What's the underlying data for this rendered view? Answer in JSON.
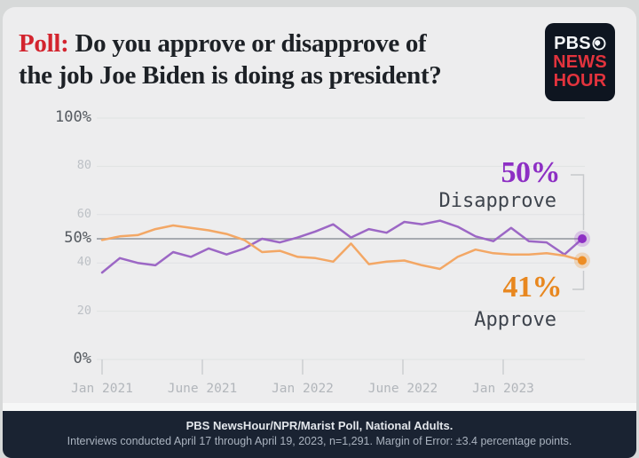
{
  "title": {
    "prefix": "Poll:",
    "line1": "Do you approve or disapprove of",
    "line2": "the job Joe Biden is doing as president?"
  },
  "logo": {
    "line1": "PBS",
    "line2": "NEWS",
    "line3": "HOUR"
  },
  "chart_data": {
    "type": "line",
    "title": "Do you approve or disapprove of the job Joe Biden is doing as president?",
    "x_axis": {
      "labels": [
        "Jan 2021",
        "June 2021",
        "Jan 2022",
        "June 2022",
        "Jan 2023"
      ],
      "range": "Jan 2021 - Apr 2023"
    },
    "ylim": [
      0,
      100
    ],
    "grid": true,
    "baseline_value": 50,
    "y_ticks": [
      {
        "label": "100%",
        "value": 100,
        "major": true
      },
      {
        "label": "80",
        "value": 80,
        "major": false
      },
      {
        "label": "60",
        "value": 60,
        "major": false
      },
      {
        "label": "50%",
        "value": 50,
        "major": true
      },
      {
        "label": "40",
        "value": 40,
        "major": false
      },
      {
        "label": "20",
        "value": 20,
        "major": false
      },
      {
        "label": "0%",
        "value": 0,
        "major": true
      }
    ],
    "series": [
      {
        "name": "Disapprove",
        "end_value_label": "50%",
        "line_color": "#9c67c5",
        "dot_color": "#8d2fc4",
        "halo_color": "rgba(141,47,196,0.22)",
        "values": [
          36,
          42,
          40,
          39,
          44.5,
          42.5,
          46,
          43.5,
          46,
          50,
          48.5,
          50.5,
          53,
          56,
          50.5,
          54,
          52.5,
          57,
          56,
          57.5,
          55,
          51,
          49,
          54.5,
          49,
          48.5,
          43.5,
          50
        ]
      },
      {
        "name": "Approve",
        "end_value_label": "41%",
        "line_color": "#f3a765",
        "dot_color": "#ed8d25",
        "halo_color": "rgba(237,141,37,0.25)",
        "values": [
          49.5,
          51,
          51.5,
          54,
          55.5,
          54.5,
          53.5,
          52,
          49.5,
          44.5,
          45,
          42.5,
          42,
          40.5,
          48,
          39.5,
          40.5,
          41,
          39,
          37.5,
          42.5,
          45.5,
          44,
          43.5,
          43.5,
          44,
          43,
          41
        ]
      }
    ]
  },
  "annotations": {
    "disapprove_value": "50%",
    "disapprove_label": "Disapprove",
    "approve_value": "41%",
    "approve_label": "Approve"
  },
  "footer": {
    "line1": "PBS NewsHour/NPR/Marist Poll, National Adults.",
    "line2": "Interviews conducted April 17 through April 19, 2023, n=1,291. Margin of Error: ±3.4 percentage points."
  },
  "colors": {
    "page_bg": "#d7d9d9",
    "card_bg": "#ededee",
    "title_text": "#1d2126",
    "title_accent": "#d3242e",
    "logo_bg": "#0e1520",
    "logo_red": "#e2333d",
    "gridline": "#e0e2e3",
    "baseline": "#a7abb0",
    "tick": "#ccced1",
    "bracket": "#c7c9cc",
    "footer_bg": "#1a2332"
  }
}
